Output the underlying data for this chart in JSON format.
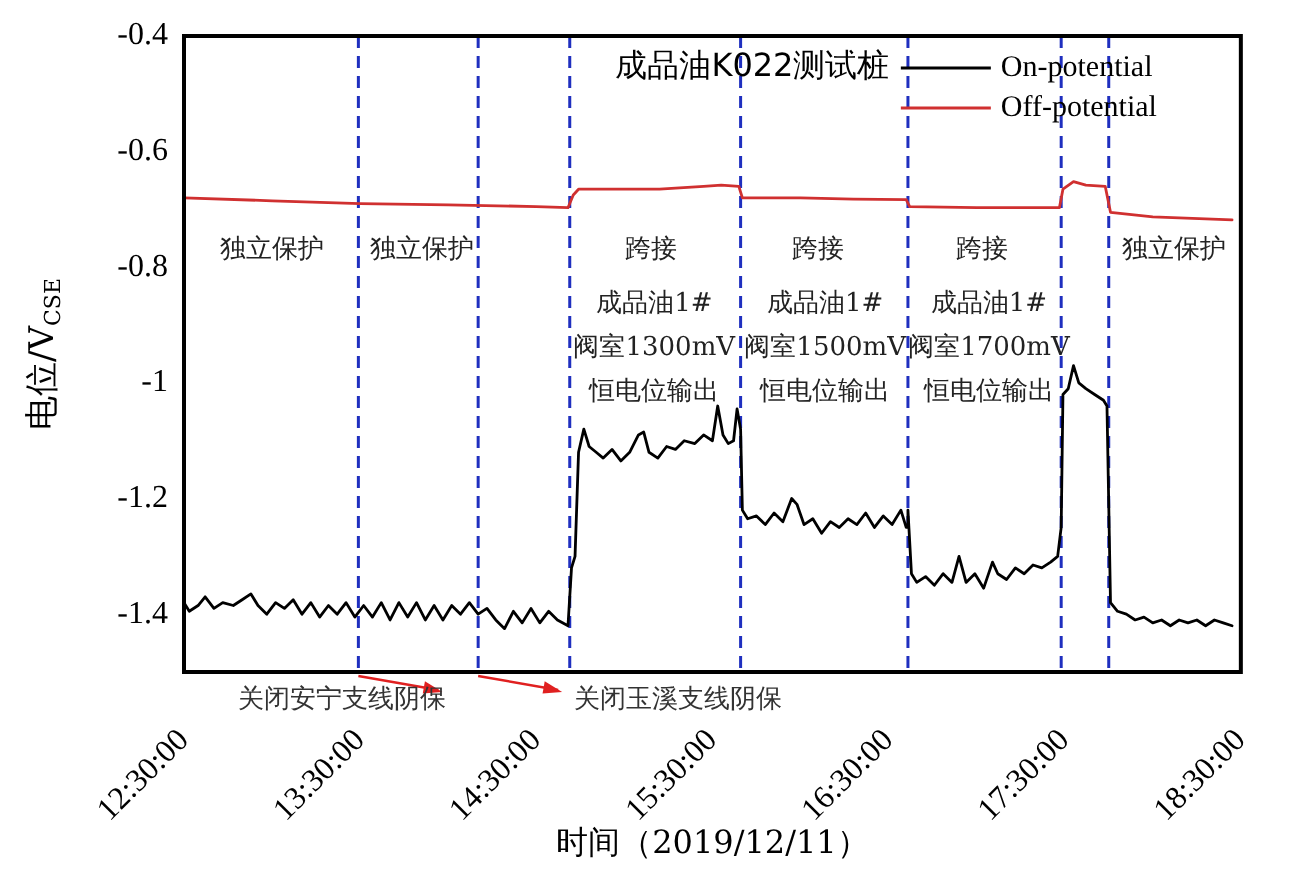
{
  "chart_data": {
    "type": "line",
    "title": "成品油K022测试桩",
    "xlabel": "时间（2019/12/11）",
    "ylabel": "电位/V$_{CSE}$",
    "xlim": [
      12.5,
      18.5
    ],
    "ylim": [
      -1.5,
      -0.4
    ],
    "xticks": [
      {
        "value": 12.5,
        "label": "12:30:00"
      },
      {
        "value": 13.5,
        "label": "13:30:00"
      },
      {
        "value": 14.5,
        "label": "14:30:00"
      },
      {
        "value": 15.5,
        "label": "15:30:00"
      },
      {
        "value": 16.5,
        "label": "16:30:00"
      },
      {
        "value": 17.5,
        "label": "17:30:00"
      },
      {
        "value": 18.5,
        "label": "18:30:00"
      }
    ],
    "yticks": [
      -1.4,
      -1.2,
      -1.0,
      -0.8,
      -0.6,
      -0.4
    ],
    "grid": false,
    "legend": "top right",
    "marker": "none",
    "line_style": "solid",
    "series": [
      {
        "name": "On-potential",
        "color": "#000000",
        "x": [
          12.5,
          12.53,
          12.58,
          12.62,
          12.67,
          12.72,
          12.78,
          12.83,
          12.88,
          12.92,
          12.97,
          13.02,
          13.07,
          13.12,
          13.17,
          13.22,
          13.27,
          13.32,
          13.37,
          13.42,
          13.47,
          13.52,
          13.57,
          13.62,
          13.67,
          13.72,
          13.77,
          13.82,
          13.87,
          13.92,
          13.97,
          14.02,
          14.07,
          14.12,
          14.17,
          14.22,
          14.27,
          14.32,
          14.37,
          14.42,
          14.47,
          14.52,
          14.57,
          14.62,
          14.68,
          14.7,
          14.72,
          14.74,
          14.77,
          14.8,
          14.84,
          14.88,
          14.93,
          14.98,
          15.03,
          15.08,
          15.11,
          15.14,
          15.19,
          15.24,
          15.29,
          15.34,
          15.4,
          15.45,
          15.5,
          15.53,
          15.56,
          15.59,
          15.62,
          15.64,
          15.66,
          15.67,
          15.7,
          15.75,
          15.8,
          15.85,
          15.9,
          15.95,
          15.98,
          16.02,
          16.07,
          16.12,
          16.17,
          16.22,
          16.27,
          16.32,
          16.37,
          16.42,
          16.47,
          16.52,
          16.57,
          16.6,
          16.61,
          16.63,
          16.66,
          16.71,
          16.76,
          16.81,
          16.86,
          16.9,
          16.94,
          16.99,
          17.04,
          17.09,
          17.12,
          17.17,
          17.22,
          17.27,
          17.32,
          17.37,
          17.42,
          17.46,
          17.48,
          17.49,
          17.52,
          17.55,
          17.58,
          17.62,
          17.67,
          17.72,
          17.74,
          17.76,
          17.8,
          17.85,
          17.9,
          17.95,
          18.0,
          18.05,
          18.1,
          18.15,
          18.2,
          18.25,
          18.3,
          18.35,
          18.4,
          18.45
        ],
        "values": [
          -1.38,
          -1.395,
          -1.385,
          -1.37,
          -1.39,
          -1.38,
          -1.385,
          -1.375,
          -1.365,
          -1.385,
          -1.4,
          -1.38,
          -1.39,
          -1.375,
          -1.4,
          -1.38,
          -1.405,
          -1.385,
          -1.4,
          -1.38,
          -1.405,
          -1.385,
          -1.405,
          -1.38,
          -1.41,
          -1.38,
          -1.405,
          -1.38,
          -1.41,
          -1.385,
          -1.41,
          -1.385,
          -1.4,
          -1.38,
          -1.4,
          -1.39,
          -1.41,
          -1.425,
          -1.395,
          -1.415,
          -1.39,
          -1.415,
          -1.395,
          -1.41,
          -1.42,
          -1.32,
          -1.3,
          -1.12,
          -1.08,
          -1.11,
          -1.12,
          -1.13,
          -1.115,
          -1.135,
          -1.12,
          -1.09,
          -1.085,
          -1.12,
          -1.13,
          -1.11,
          -1.115,
          -1.1,
          -1.105,
          -1.09,
          -1.1,
          -1.04,
          -1.09,
          -1.105,
          -1.1,
          -1.045,
          -1.08,
          -1.22,
          -1.235,
          -1.23,
          -1.245,
          -1.225,
          -1.24,
          -1.2,
          -1.21,
          -1.245,
          -1.235,
          -1.26,
          -1.24,
          -1.25,
          -1.235,
          -1.245,
          -1.225,
          -1.25,
          -1.23,
          -1.245,
          -1.22,
          -1.25,
          -1.22,
          -1.33,
          -1.345,
          -1.335,
          -1.35,
          -1.33,
          -1.345,
          -1.3,
          -1.345,
          -1.33,
          -1.355,
          -1.31,
          -1.33,
          -1.34,
          -1.32,
          -1.33,
          -1.315,
          -1.32,
          -1.31,
          -1.3,
          -1.25,
          -1.02,
          -1.01,
          -0.97,
          -1.0,
          -1.01,
          -1.02,
          -1.03,
          -1.04,
          -1.38,
          -1.395,
          -1.4,
          -1.41,
          -1.405,
          -1.415,
          -1.41,
          -1.42,
          -1.41,
          -1.415,
          -1.41,
          -1.42,
          -1.41,
          -1.415,
          -1.42
        ]
      },
      {
        "name": "Off-potential",
        "color": "#d03030",
        "x": [
          12.5,
          13.0,
          13.5,
          14.0,
          14.5,
          14.68,
          14.71,
          14.74,
          14.9,
          15.2,
          15.45,
          15.55,
          15.65,
          15.67,
          16.0,
          16.3,
          16.6,
          16.62,
          17.0,
          17.47,
          17.49,
          17.55,
          17.62,
          17.73,
          17.76,
          18.0,
          18.45
        ],
        "values": [
          -0.68,
          -0.685,
          -0.69,
          -0.692,
          -0.695,
          -0.697,
          -0.675,
          -0.665,
          -0.665,
          -0.665,
          -0.66,
          -0.658,
          -0.66,
          -0.68,
          -0.68,
          -0.682,
          -0.683,
          -0.695,
          -0.697,
          -0.697,
          -0.665,
          -0.652,
          -0.658,
          -0.66,
          -0.705,
          -0.713,
          -0.718
        ]
      }
    ],
    "ref_lines": [
      {
        "axis": "x",
        "value": 13.49,
        "color": "#1f2fbf",
        "line_style": "dashed"
      },
      {
        "axis": "x",
        "value": 14.17,
        "color": "#1f2fbf",
        "line_style": "dashed"
      },
      {
        "axis": "x",
        "value": 14.69,
        "color": "#1f2fbf",
        "line_style": "dashed"
      },
      {
        "axis": "x",
        "value": 15.66,
        "color": "#1f2fbf",
        "line_style": "dashed"
      },
      {
        "axis": "x",
        "value": 16.61,
        "color": "#1f2fbf",
        "line_style": "dashed"
      },
      {
        "axis": "x",
        "value": 17.48,
        "color": "#1f2fbf",
        "line_style": "dashed"
      },
      {
        "axis": "x",
        "value": 17.75,
        "color": "#1f2fbf",
        "line_style": "dashed"
      }
    ],
    "annotations": [
      "独立保护",
      "独立保护",
      "跨接",
      "跨接",
      "跨接",
      "独立保护",
      "成品油1#\n阀室1300mV\n恒电位输出",
      "成品油1#\n阀室1500mV\n恒电位输出",
      "成品油1#\n阀室1700mV\n恒电位输出",
      "关闭安宁支线阴保",
      "关闭玉溪支线阴保"
    ]
  }
}
